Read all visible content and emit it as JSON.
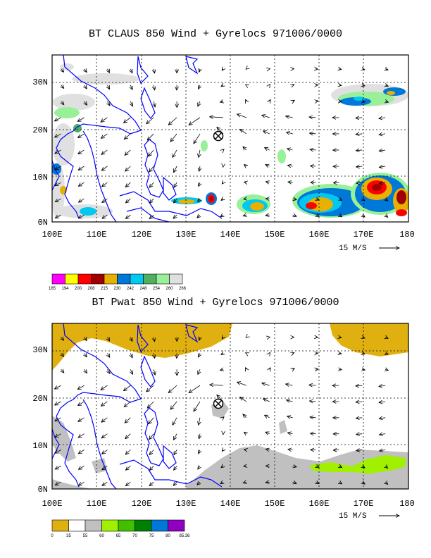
{
  "panels": [
    {
      "title": "BT CLAUS 850 Wind + Gyrelocs 971006/0000",
      "colorbar": {
        "colors": [
          "#ff00ff",
          "#ffff00",
          "#ff0000",
          "#a00000",
          "#e8b000",
          "#0078d8",
          "#00c8f0",
          "#50b060",
          "#98f098",
          "#e0e0e0"
        ],
        "labels": [
          "185",
          "194",
          "200",
          "208",
          "215",
          "230",
          "242",
          "248",
          "254",
          "260",
          "266"
        ]
      }
    },
    {
      "title": "BT Pwat 850 Wind + Gyrelocs 971006/0000",
      "colorbar": {
        "colors": [
          "#e0b010",
          "#ffffff",
          "#c0c0c0",
          "#a0f000",
          "#40c000",
          "#008000",
          "#0078d8",
          "#9000c0"
        ],
        "labels": [
          "0",
          "35",
          "55",
          "60",
          "65",
          "70",
          "75",
          "80",
          "85.36"
        ]
      }
    }
  ],
  "chart_data": [
    {
      "type": "heatmap",
      "title": "BT CLAUS 850 Wind + Gyrelocs 971006/0000",
      "field": "brightness temperature (CLAUS) with 850 hPa wind vectors",
      "x_ticks": [
        "100E",
        "110E",
        "120E",
        "130E",
        "140E",
        "150E",
        "160E",
        "170E",
        "180"
      ],
      "y_ticks": [
        "0N",
        "10N",
        "20N",
        "30N"
      ],
      "xlim": [
        100,
        180
      ],
      "ylim": [
        0,
        36
      ],
      "reference_vector": "15 M/S",
      "gyre_location": {
        "lon": 137,
        "lat": 19
      },
      "colorbar_levels": [
        185,
        194,
        200,
        208,
        215,
        230,
        242,
        248,
        254,
        260,
        266
      ],
      "cold_cloud_regions": [
        {
          "lon": 171,
          "lat": 7,
          "peak_class": "208"
        },
        {
          "lon": 176,
          "lat": 5,
          "peak_class": "208"
        },
        {
          "lon": 160,
          "lat": 4,
          "peak_class": "215"
        },
        {
          "lon": 136,
          "lat": 5,
          "peak_class": "200"
        },
        {
          "lon": 145,
          "lat": 3,
          "peak_class": "215"
        },
        {
          "lon": 172,
          "lat": 28,
          "peak_class": "230"
        }
      ]
    },
    {
      "type": "heatmap",
      "title": "BT Pwat 850 Wind + Gyrelocs 971006/0000",
      "field": "precipitable water with 850 hPa wind vectors",
      "x_ticks": [
        "100E",
        "110E",
        "120E",
        "130E",
        "140E",
        "150E",
        "160E",
        "170E",
        "180"
      ],
      "y_ticks": [
        "0N",
        "10N",
        "20N",
        "30N"
      ],
      "xlim": [
        100,
        180
      ],
      "ylim": [
        0,
        36
      ],
      "reference_vector": "15 M/S",
      "gyre_location": {
        "lon": 137,
        "lat": 19
      },
      "colorbar_levels": [
        0,
        35,
        55,
        60,
        65,
        70,
        75,
        80,
        85.36
      ],
      "regions": [
        {
          "class": "0-35",
          "area": "north (25N-36N) west and east"
        },
        {
          "class": "55-60",
          "area": "tropical band 0-10N, 130E-180"
        },
        {
          "class": "60-65",
          "area": "160E-178E near 3-7N"
        }
      ]
    }
  ],
  "grid": {
    "x_ticks": [
      "100E",
      "110E",
      "120E",
      "130E",
      "140E",
      "150E",
      "160E",
      "170E",
      "180"
    ],
    "y_ticks": [
      "0N",
      "10N",
      "20N",
      "30N"
    ],
    "ref_label": "15 M/S"
  }
}
